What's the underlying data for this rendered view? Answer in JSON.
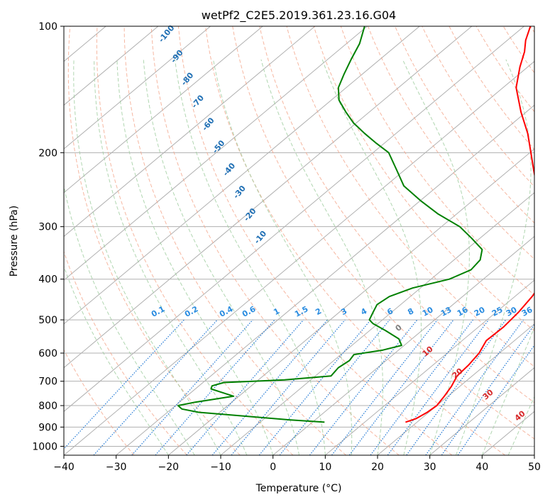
{
  "chart_data": {
    "type": "line",
    "title": "wetPf2_C2E5.2019.361.23.16.G04",
    "xlabel": "Temperature (°C)",
    "ylabel": "Pressure (hPa)",
    "xlim": [
      -40,
      50
    ],
    "ylim": [
      1050,
      100
    ],
    "yscale": "log",
    "skew_deg_per_decade": 96.0,
    "x_ticks": [
      -40,
      -30,
      -20,
      -10,
      0,
      10,
      20,
      30,
      40,
      50
    ],
    "y_ticks": [
      100,
      200,
      300,
      400,
      500,
      600,
      700,
      800,
      900,
      1000
    ],
    "grid": true,
    "series": [
      {
        "color": "#ff0000",
        "p": [
          876,
          860,
          830,
          800,
          760,
          720,
          680,
          640,
          600,
          560,
          520,
          480,
          440,
          400,
          360,
          330,
          300,
          280,
          260,
          240,
          220,
          200,
          180,
          160,
          140,
          125,
          115,
          108,
          100
        ],
        "t": [
          17.8,
          19.0,
          19.7,
          20.0,
          19.3,
          18.4,
          17.1,
          16.8,
          16.1,
          14.6,
          14.8,
          14.3,
          13.3,
          11.7,
          8.1,
          4.3,
          0.6,
          -3.3,
          -6.9,
          -11.1,
          -15.3,
          -19.8,
          -24.8,
          -31.0,
          -37.5,
          -41.5,
          -44.1,
          -46.5,
          -48.8
        ]
      },
      {
        "color": "#008000",
        "p": [
          876,
          865,
          850,
          830,
          815,
          800,
          785,
          760,
          745,
          730,
          718,
          705,
          695,
          680,
          650,
          625,
          605,
          590,
          575,
          555,
          530,
          510,
          500,
          480,
          460,
          440,
          420,
          400,
          380,
          360,
          340,
          320,
          300,
          280,
          260,
          240,
          220,
          200,
          190,
          180,
          170,
          160,
          150,
          140,
          130,
          120,
          110,
          100
        ],
        "t": [
          2.3,
          -5.0,
          -13.0,
          -24.0,
          -28.0,
          -29.5,
          -27.0,
          -21.0,
          -24.0,
          -27.0,
          -27.5,
          -26.0,
          -15.0,
          -7.0,
          -7.5,
          -7.0,
          -7.5,
          -3.0,
          -0.5,
          -2.5,
          -7.0,
          -11.0,
          -12.5,
          -13.5,
          -14.5,
          -14.0,
          -11.5,
          -6.5,
          -4.5,
          -5.0,
          -7.0,
          -11.5,
          -16.5,
          -23.5,
          -30.0,
          -36.5,
          -41.5,
          -47.0,
          -51.5,
          -56.0,
          -60.5,
          -64.5,
          -68.5,
          -71.5,
          -73.5,
          -75.5,
          -77.5,
          -80.5
        ]
      }
    ],
    "dry_adiabat_labels": [
      "-100",
      "-90",
      "-80",
      "-70",
      "-60",
      "-50",
      "-40",
      "-30",
      "-20",
      "-10"
    ],
    "moist_adiabat_labels": [
      "0",
      "10",
      "20",
      "30",
      "40"
    ],
    "mixing_ratio_labels": [
      "0.1",
      "0.2",
      "0.4",
      "0.6",
      "1",
      "1.5",
      "2",
      "3",
      "4",
      "6",
      "8",
      "10",
      "13",
      "16",
      "20",
      "25",
      "30",
      "36"
    ]
  }
}
